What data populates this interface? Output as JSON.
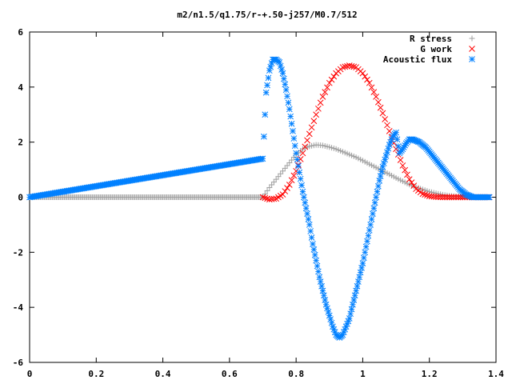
{
  "chart_data": {
    "type": "scatter",
    "title": "m2/n1.5/q1.75/r-+.50-j257/M0.7/512",
    "xlabel": "",
    "ylabel": "",
    "xlim": [
      0,
      1.4
    ],
    "ylim": [
      -6,
      6
    ],
    "x_ticks": [
      "0",
      "0.2",
      "0.4",
      "0.6",
      "0.8",
      "1",
      "1.2",
      "1.4"
    ],
    "y_ticks": [
      "-6",
      "-4",
      "-2",
      "0",
      "2",
      "4",
      "6"
    ],
    "legend_position": "top-right",
    "grid": false,
    "series": [
      {
        "name": "R stress",
        "marker": "+",
        "color": "#a0a0a0",
        "x": [
          0.0,
          0.7,
          0.72,
          0.74,
          0.76,
          0.78,
          0.8,
          0.82,
          0.84,
          0.86,
          0.88,
          0.9,
          0.92,
          0.94,
          0.96,
          0.98,
          1.0,
          1.02,
          1.04,
          1.06,
          1.08,
          1.1,
          1.12,
          1.14,
          1.16,
          1.18,
          1.2,
          1.22,
          1.24,
          1.26,
          1.28,
          1.3,
          1.32,
          1.34,
          1.36,
          1.38
        ],
        "y": [
          0.0,
          0.0,
          0.35,
          0.65,
          0.95,
          1.25,
          1.55,
          1.75,
          1.85,
          1.9,
          1.88,
          1.82,
          1.75,
          1.65,
          1.55,
          1.45,
          1.33,
          1.2,
          1.08,
          0.95,
          0.83,
          0.7,
          0.58,
          0.46,
          0.36,
          0.28,
          0.2,
          0.14,
          0.09,
          0.05,
          0.03,
          0.02,
          0.01,
          0.0,
          0.0,
          0.0
        ]
      },
      {
        "name": "G work",
        "marker": "x",
        "color": "#ff0000",
        "x": [
          0.7,
          0.72,
          0.74,
          0.76,
          0.78,
          0.8,
          0.82,
          0.84,
          0.86,
          0.88,
          0.9,
          0.92,
          0.94,
          0.96,
          0.98,
          1.0,
          1.02,
          1.04,
          1.06,
          1.08,
          1.1,
          1.12,
          1.14,
          1.16,
          1.18,
          1.2,
          1.22,
          1.24,
          1.26,
          1.28,
          1.3,
          1.32,
          1.34,
          1.36,
          1.38
        ],
        "y": [
          0.0,
          -0.08,
          -0.05,
          0.1,
          0.45,
          0.95,
          1.6,
          2.3,
          3.0,
          3.65,
          4.15,
          4.5,
          4.72,
          4.78,
          4.72,
          4.5,
          4.15,
          3.65,
          3.05,
          2.4,
          1.75,
          1.15,
          0.65,
          0.3,
          0.12,
          0.04,
          0.01,
          0.0,
          0.0,
          0.0,
          0.0,
          0.0,
          0.0,
          0.0,
          0.0
        ]
      },
      {
        "name": "Acoustic flux",
        "marker": "*",
        "color": "#0080ff",
        "x": [
          0.0,
          0.7,
          0.71,
          0.72,
          0.73,
          0.74,
          0.75,
          0.76,
          0.77,
          0.78,
          0.79,
          0.8,
          0.81,
          0.82,
          0.83,
          0.84,
          0.85,
          0.86,
          0.87,
          0.88,
          0.89,
          0.9,
          0.91,
          0.92,
          0.93,
          0.94,
          0.95,
          0.96,
          0.97,
          0.98,
          0.99,
          1.0,
          1.01,
          1.02,
          1.03,
          1.04,
          1.05,
          1.06,
          1.07,
          1.08,
          1.09,
          1.1,
          1.11,
          1.12,
          1.13,
          1.14,
          1.15,
          1.16,
          1.17,
          1.18,
          1.19,
          1.2,
          1.21,
          1.22,
          1.23,
          1.24,
          1.25,
          1.26,
          1.27,
          1.28,
          1.29,
          1.3,
          1.31,
          1.32,
          1.33,
          1.34,
          1.35,
          1.36,
          1.37,
          1.38
        ],
        "y": [
          0.0,
          1.4,
          3.8,
          4.6,
          5.0,
          5.0,
          4.9,
          4.5,
          3.9,
          3.2,
          2.4,
          1.6,
          0.9,
          0.2,
          -0.4,
          -1.0,
          -1.7,
          -2.3,
          -2.9,
          -3.4,
          -3.9,
          -4.3,
          -4.7,
          -5.0,
          -5.1,
          -5.0,
          -4.7,
          -4.4,
          -3.9,
          -3.4,
          -2.9,
          -2.4,
          -1.8,
          -1.2,
          -0.6,
          0.0,
          0.6,
          1.1,
          1.5,
          1.9,
          2.2,
          2.35,
          1.6,
          1.75,
          1.95,
          2.1,
          2.1,
          2.05,
          2.0,
          1.9,
          1.8,
          1.65,
          1.5,
          1.35,
          1.2,
          1.05,
          0.9,
          0.75,
          0.6,
          0.45,
          0.3,
          0.2,
          0.1,
          0.05,
          0.0,
          0.0,
          0.0,
          0.0,
          0.0,
          0.0
        ]
      }
    ]
  }
}
